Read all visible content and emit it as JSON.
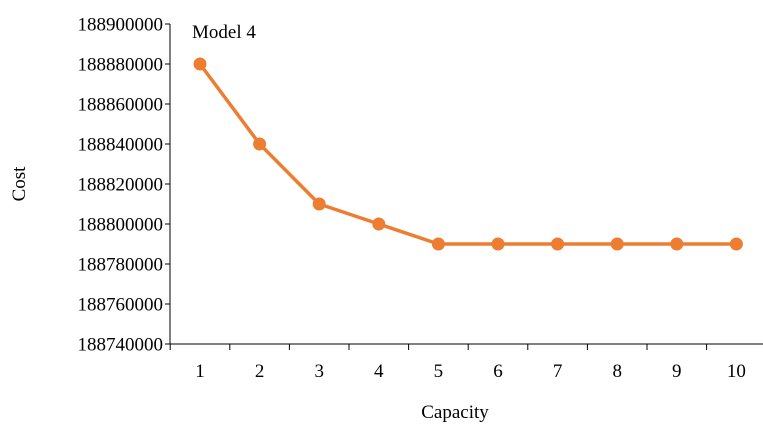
{
  "chart_data": {
    "type": "line",
    "title": "Model 4",
    "xlabel": "Capacity",
    "ylabel": "Cost",
    "x": [
      1,
      2,
      3,
      4,
      5,
      6,
      7,
      8,
      9,
      10
    ],
    "series": [
      {
        "values": [
          188880000,
          188840000,
          188810000,
          188800000,
          188790000,
          188790000,
          188790000,
          188790000,
          188790000,
          188790000
        ],
        "color": "#ED7D31"
      }
    ],
    "ylim": [
      188740000,
      188900000
    ],
    "yticks": [
      188740000,
      188760000,
      188780000,
      188800000,
      188820000,
      188840000,
      188860000,
      188880000,
      188900000
    ],
    "xticks": [
      1,
      2,
      3,
      4,
      5,
      6,
      7,
      8,
      9,
      10
    ],
    "grid": false,
    "legend": "none"
  }
}
